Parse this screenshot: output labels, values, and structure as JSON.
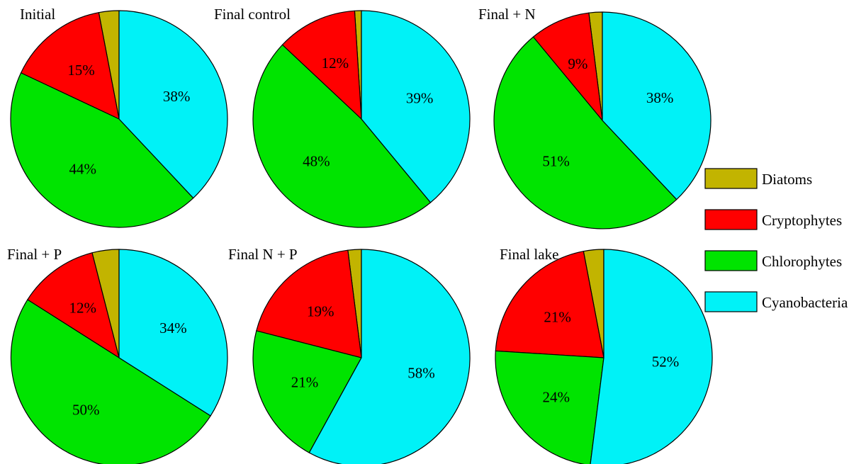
{
  "chart_data": {
    "type": "pie",
    "categories": [
      "Diatoms",
      "Cryptophytes",
      "Chlorophytes",
      "Cyanobacteria"
    ],
    "colors": {
      "Diatoms": "#c2b400",
      "Cryptophytes": "#ff0000",
      "Chlorophytes": "#00e400",
      "Cyanobacteria": "#00f2f7"
    },
    "legend": {
      "placement": "right",
      "entries": [
        "Diatoms",
        "Cryptophytes",
        "Chlorophytes",
        "Cyanobacteria"
      ]
    },
    "charts": [
      {
        "title": "Initial",
        "values": [
          3,
          15,
          44,
          38
        ],
        "labels": [
          "",
          "15%",
          "44%",
          "38%"
        ]
      },
      {
        "title": "Final control",
        "values": [
          1,
          12,
          48,
          39
        ],
        "labels": [
          "",
          "12%",
          "48%",
          "39%"
        ]
      },
      {
        "title": "Final + N",
        "values": [
          2,
          9,
          51,
          38
        ],
        "labels": [
          "",
          "9%",
          "51%",
          "38%"
        ]
      },
      {
        "title": "Final + P",
        "values": [
          4,
          12,
          50,
          34
        ],
        "labels": [
          "",
          "12%",
          "50%",
          "34%"
        ]
      },
      {
        "title": "Final N + P",
        "values": [
          2,
          19,
          21,
          58
        ],
        "labels": [
          "",
          "19%",
          "21%",
          "58%"
        ]
      },
      {
        "title": "Final lake",
        "values": [
          3,
          21,
          24,
          52
        ],
        "labels": [
          "",
          "21%",
          "24%",
          "52%"
        ]
      }
    ]
  }
}
